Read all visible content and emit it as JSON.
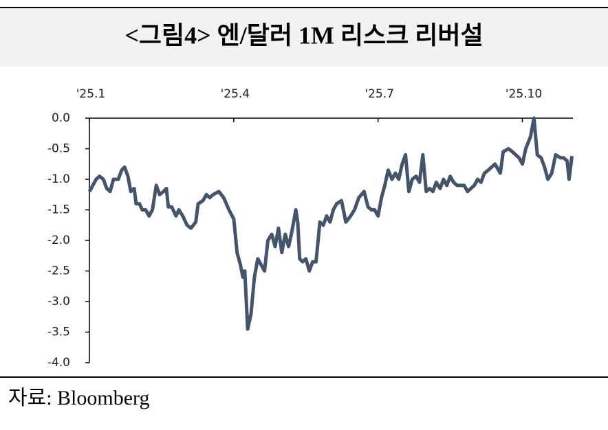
{
  "chart_data": {
    "type": "line",
    "title": "<그림4> 엔/달러 1M 리스크 리버설",
    "source": "자료: Bloomberg",
    "xlim": [
      1,
      11.05
    ],
    "xticks": [
      {
        "value": 1,
        "label": "'25.1"
      },
      {
        "value": 4,
        "label": "'25.4"
      },
      {
        "value": 7,
        "label": "'25.7"
      },
      {
        "value": 10,
        "label": "'25.10"
      }
    ],
    "ylim": [
      -4,
      0
    ],
    "yticks": [
      {
        "value": 0,
        "label": "0.0"
      },
      -0.5,
      {
        "value": -1,
        "label": "-1.0"
      },
      -1.5,
      {
        "value": -2,
        "label": "-2.0"
      },
      -2.5,
      {
        "value": -3,
        "label": "-3.0"
      },
      -3.5,
      {
        "value": -4,
        "label": "-4.0"
      }
    ],
    "series": [
      {
        "color": "#44546a",
        "x": [
          1.0,
          1.07,
          1.14,
          1.21,
          1.29,
          1.36,
          1.43,
          1.5,
          1.6,
          1.67,
          1.73,
          1.8,
          1.86,
          1.93,
          1.97,
          2.04,
          2.1,
          2.17,
          2.24,
          2.31,
          2.39,
          2.46,
          2.54,
          2.6,
          2.64,
          2.71,
          2.8,
          2.86,
          2.94,
          3.03,
          3.11,
          3.21,
          3.26,
          3.36,
          3.43,
          3.5,
          3.57,
          3.69,
          3.79,
          3.9,
          4.0,
          4.07,
          4.14,
          4.19,
          4.23,
          4.29,
          4.36,
          4.43,
          4.5,
          4.57,
          4.64,
          4.71,
          4.79,
          4.86,
          4.93,
          5.0,
          5.07,
          5.14,
          5.21,
          5.29,
          5.33,
          5.37,
          5.43,
          5.5,
          5.57,
          5.64,
          5.71,
          5.79,
          5.86,
          5.93,
          6.0,
          6.07,
          6.14,
          6.24,
          6.33,
          6.43,
          6.51,
          6.6,
          6.71,
          6.79,
          6.86,
          6.93,
          7.0,
          7.07,
          7.14,
          7.21,
          7.29,
          7.36,
          7.43,
          7.5,
          7.57,
          7.64,
          7.71,
          7.79,
          7.86,
          7.93,
          8.0,
          8.07,
          8.14,
          8.21,
          8.29,
          8.36,
          8.43,
          8.5,
          8.57,
          8.64,
          8.71,
          8.79,
          8.86,
          9.0,
          9.07,
          9.14,
          9.21,
          9.29,
          9.36,
          9.43,
          9.54,
          9.6,
          9.71,
          9.79,
          9.86,
          9.93,
          10.0,
          10.07,
          10.17,
          10.24,
          10.31,
          10.39,
          10.46,
          10.53,
          10.61,
          10.69,
          10.79,
          10.86,
          10.93,
          10.97,
          11.03
        ],
        "values": [
          -1.2,
          -1.1,
          -1.0,
          -0.95,
          -1.0,
          -1.15,
          -1.2,
          -1.0,
          -1.0,
          -0.85,
          -0.8,
          -0.95,
          -1.2,
          -1.15,
          -1.4,
          -1.4,
          -1.5,
          -1.5,
          -1.6,
          -1.5,
          -1.1,
          -1.25,
          -1.2,
          -1.15,
          -1.45,
          -1.45,
          -1.6,
          -1.5,
          -1.6,
          -1.75,
          -1.8,
          -1.7,
          -1.4,
          -1.35,
          -1.25,
          -1.3,
          -1.25,
          -1.2,
          -1.3,
          -1.5,
          -1.65,
          -2.2,
          -2.4,
          -2.6,
          -2.5,
          -3.45,
          -3.2,
          -2.6,
          -2.3,
          -2.4,
          -2.5,
          -2.0,
          -1.9,
          -2.1,
          -1.8,
          -2.2,
          -1.9,
          -2.1,
          -1.85,
          -1.5,
          -1.7,
          -2.3,
          -2.35,
          -2.3,
          -2.5,
          -2.35,
          -2.35,
          -1.7,
          -1.75,
          -1.6,
          -1.7,
          -1.5,
          -1.4,
          -1.35,
          -1.7,
          -1.6,
          -1.5,
          -1.3,
          -1.2,
          -1.45,
          -1.5,
          -1.5,
          -1.6,
          -1.3,
          -1.1,
          -0.85,
          -1.0,
          -0.9,
          -1.0,
          -0.75,
          -0.6,
          -1.2,
          -1.0,
          -0.95,
          -1.05,
          -0.6,
          -1.2,
          -1.15,
          -1.2,
          -1.05,
          -1.15,
          -1.0,
          -1.1,
          -0.95,
          -1.05,
          -1.1,
          -1.1,
          -1.1,
          -1.2,
          -1.1,
          -1.0,
          -1.05,
          -0.9,
          -0.85,
          -0.8,
          -0.75,
          -0.9,
          -0.55,
          -0.5,
          -0.55,
          -0.6,
          -0.65,
          -0.75,
          -0.5,
          -0.3,
          0.0,
          -0.6,
          -0.65,
          -0.8,
          -1.0,
          -0.9,
          -0.6,
          -0.65,
          -0.65,
          -0.7,
          -1.0,
          -0.62
        ]
      }
    ]
  }
}
